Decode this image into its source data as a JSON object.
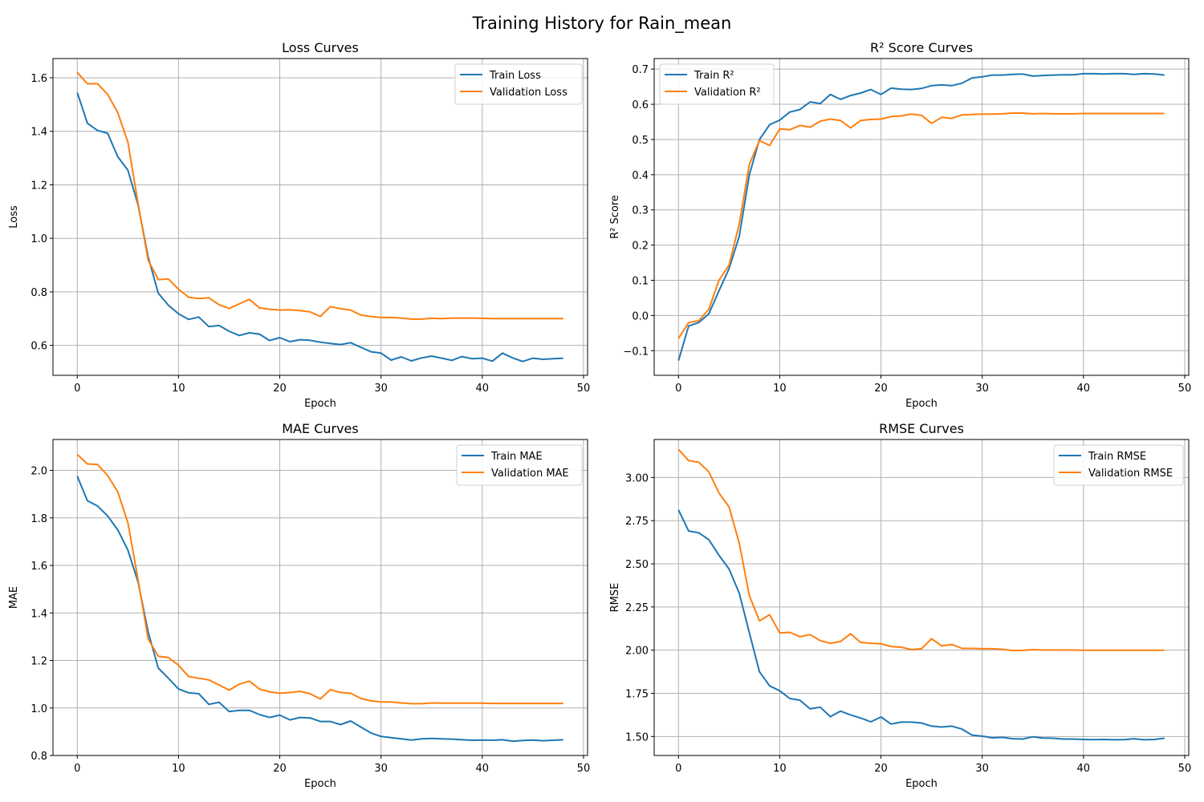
{
  "figure": {
    "suptitle": "Training History for Rain_mean"
  },
  "colors": {
    "train": "#1f77b4",
    "validation": "#ff7f0e",
    "grid": "#b0b0b0",
    "axis": "#000000"
  },
  "chart_data": [
    {
      "type": "line",
      "title": "Loss Curves",
      "xlabel": "Epoch",
      "ylabel": "Loss",
      "xlim": [
        -2.4,
        50.4
      ],
      "ylim": [
        0.488,
        1.672
      ],
      "xticks": [
        0,
        10,
        20,
        30,
        40,
        50
      ],
      "yticks": [
        0.6,
        0.8,
        1.0,
        1.2,
        1.4,
        1.6
      ],
      "ytick_labels": [
        "0.6",
        "0.8",
        "1.0",
        "1.2",
        "1.4",
        "1.6"
      ],
      "grid": true,
      "legend": "upper right",
      "x": [
        0,
        1,
        2,
        3,
        4,
        5,
        6,
        7,
        8,
        9,
        10,
        11,
        12,
        13,
        14,
        15,
        16,
        17,
        18,
        19,
        20,
        21,
        22,
        23,
        24,
        25,
        26,
        27,
        28,
        29,
        30,
        31,
        32,
        33,
        34,
        35,
        36,
        37,
        38,
        39,
        40,
        41,
        42,
        43,
        44,
        45,
        46,
        47,
        48
      ],
      "series": [
        {
          "name": "Train Loss",
          "values": [
            1.545,
            1.43,
            1.403,
            1.393,
            1.305,
            1.255,
            1.125,
            0.93,
            0.795,
            0.75,
            0.718,
            0.697,
            0.706,
            0.67,
            0.674,
            0.653,
            0.637,
            0.647,
            0.642,
            0.618,
            0.629,
            0.614,
            0.621,
            0.619,
            0.612,
            0.607,
            0.603,
            0.61,
            0.593,
            0.576,
            0.571,
            0.545,
            0.557,
            0.542,
            0.553,
            0.56,
            0.552,
            0.544,
            0.558,
            0.55,
            0.552,
            0.541,
            0.571,
            0.553,
            0.54,
            0.552,
            0.548,
            0.55,
            0.552
          ]
        },
        {
          "name": "Validation Loss",
          "values": [
            1.62,
            1.578,
            1.578,
            1.538,
            1.47,
            1.36,
            1.13,
            0.918,
            0.846,
            0.848,
            0.81,
            0.78,
            0.775,
            0.778,
            0.752,
            0.738,
            0.755,
            0.772,
            0.74,
            0.735,
            0.732,
            0.733,
            0.73,
            0.725,
            0.708,
            0.745,
            0.737,
            0.732,
            0.713,
            0.708,
            0.704,
            0.704,
            0.702,
            0.698,
            0.698,
            0.701,
            0.7,
            0.702,
            0.702,
            0.702,
            0.701,
            0.7,
            0.7,
            0.7,
            0.7,
            0.7,
            0.7,
            0.7,
            0.7
          ]
        }
      ]
    },
    {
      "type": "line",
      "title": "R² Score Curves",
      "xlabel": "Epoch",
      "ylabel": "R² Score",
      "xlim": [
        -2.4,
        50.4
      ],
      "ylim": [
        -0.17,
        0.73
      ],
      "xticks": [
        0,
        10,
        20,
        30,
        40,
        50
      ],
      "yticks": [
        -0.1,
        0.0,
        0.1,
        0.2,
        0.3,
        0.4,
        0.5,
        0.6,
        0.7
      ],
      "ytick_labels": [
        "−0.1",
        "0.0",
        "0.1",
        "0.2",
        "0.3",
        "0.4",
        "0.5",
        "0.6",
        "0.7"
      ],
      "grid": true,
      "legend": "upper left",
      "x": [
        0,
        1,
        2,
        3,
        4,
        5,
        6,
        7,
        8,
        9,
        10,
        11,
        12,
        13,
        14,
        15,
        16,
        17,
        18,
        19,
        20,
        21,
        22,
        23,
        24,
        25,
        26,
        27,
        28,
        29,
        30,
        31,
        32,
        33,
        34,
        35,
        36,
        37,
        38,
        39,
        40,
        41,
        42,
        43,
        44,
        45,
        46,
        47,
        48
      ],
      "series": [
        {
          "name": "Train R²",
          "values": [
            -0.128,
            -0.03,
            -0.02,
            0.005,
            0.07,
            0.133,
            0.225,
            0.4,
            0.5,
            0.542,
            0.555,
            0.578,
            0.585,
            0.607,
            0.602,
            0.628,
            0.614,
            0.625,
            0.632,
            0.642,
            0.628,
            0.646,
            0.643,
            0.642,
            0.645,
            0.653,
            0.655,
            0.653,
            0.66,
            0.675,
            0.678,
            0.683,
            0.683,
            0.685,
            0.686,
            0.68,
            0.682,
            0.683,
            0.684,
            0.684,
            0.687,
            0.687,
            0.686,
            0.687,
            0.687,
            0.685,
            0.687,
            0.686,
            0.683
          ]
        },
        {
          "name": "Validation R²",
          "values": [
            -0.065,
            -0.02,
            -0.015,
            0.018,
            0.1,
            0.143,
            0.26,
            0.43,
            0.497,
            0.483,
            0.53,
            0.528,
            0.54,
            0.535,
            0.552,
            0.558,
            0.554,
            0.533,
            0.554,
            0.557,
            0.558,
            0.565,
            0.567,
            0.572,
            0.569,
            0.546,
            0.563,
            0.56,
            0.57,
            0.571,
            0.572,
            0.572,
            0.573,
            0.575,
            0.575,
            0.573,
            0.574,
            0.573,
            0.573,
            0.573,
            0.574,
            0.574,
            0.574,
            0.574,
            0.574,
            0.574,
            0.574,
            0.574,
            0.574
          ]
        }
      ]
    },
    {
      "type": "line",
      "title": "MAE Curves",
      "xlabel": "Epoch",
      "ylabel": "MAE",
      "xlim": [
        -2.4,
        50.4
      ],
      "ylim": [
        0.8,
        2.13
      ],
      "xticks": [
        0,
        10,
        20,
        30,
        40,
        50
      ],
      "yticks": [
        0.8,
        1.0,
        1.2,
        1.4,
        1.6,
        1.8,
        2.0
      ],
      "ytick_labels": [
        "0.8",
        "1.0",
        "1.2",
        "1.4",
        "1.6",
        "1.8",
        "2.0"
      ],
      "grid": true,
      "legend": "upper right",
      "x": [
        0,
        1,
        2,
        3,
        4,
        5,
        6,
        7,
        8,
        9,
        10,
        11,
        12,
        13,
        14,
        15,
        16,
        17,
        18,
        19,
        20,
        21,
        22,
        23,
        24,
        25,
        26,
        27,
        28,
        29,
        30,
        31,
        32,
        33,
        34,
        35,
        36,
        37,
        38,
        39,
        40,
        41,
        42,
        43,
        44,
        45,
        46,
        47,
        48
      ],
      "series": [
        {
          "name": "Train MAE",
          "values": [
            1.975,
            1.872,
            1.85,
            1.808,
            1.75,
            1.665,
            1.53,
            1.32,
            1.168,
            1.125,
            1.08,
            1.064,
            1.06,
            1.015,
            1.024,
            0.985,
            0.99,
            0.99,
            0.972,
            0.96,
            0.97,
            0.95,
            0.96,
            0.958,
            0.943,
            0.943,
            0.93,
            0.945,
            0.92,
            0.895,
            0.88,
            0.875,
            0.87,
            0.865,
            0.87,
            0.872,
            0.87,
            0.869,
            0.866,
            0.864,
            0.865,
            0.864,
            0.866,
            0.86,
            0.863,
            0.865,
            0.862,
            0.864,
            0.866
          ]
        },
        {
          "name": "Validation MAE",
          "values": [
            2.067,
            2.027,
            2.025,
            1.978,
            1.91,
            1.78,
            1.54,
            1.29,
            1.218,
            1.212,
            1.18,
            1.132,
            1.125,
            1.118,
            1.097,
            1.075,
            1.1,
            1.113,
            1.08,
            1.068,
            1.062,
            1.065,
            1.07,
            1.06,
            1.038,
            1.077,
            1.065,
            1.062,
            1.04,
            1.03,
            1.025,
            1.025,
            1.021,
            1.018,
            1.018,
            1.021,
            1.02,
            1.02,
            1.02,
            1.02,
            1.02,
            1.019,
            1.019,
            1.019,
            1.019,
            1.019,
            1.019,
            1.019,
            1.019
          ]
        }
      ]
    },
    {
      "type": "line",
      "title": "RMSE Curves",
      "xlabel": "Epoch",
      "ylabel": "RMSE",
      "xlim": [
        -2.4,
        50.4
      ],
      "ylim": [
        1.39,
        3.22
      ],
      "xticks": [
        0,
        10,
        20,
        30,
        40,
        50
      ],
      "yticks": [
        1.5,
        1.75,
        2.0,
        2.25,
        2.5,
        2.75,
        3.0
      ],
      "ytick_labels": [
        "1.50",
        "1.75",
        "2.00",
        "2.25",
        "2.50",
        "2.75",
        "3.00"
      ],
      "grid": true,
      "legend": "upper right",
      "x": [
        0,
        1,
        2,
        3,
        4,
        5,
        6,
        7,
        8,
        9,
        10,
        11,
        12,
        13,
        14,
        15,
        16,
        17,
        18,
        19,
        20,
        21,
        22,
        23,
        24,
        25,
        26,
        27,
        28,
        29,
        30,
        31,
        32,
        33,
        34,
        35,
        36,
        37,
        38,
        39,
        40,
        41,
        42,
        43,
        44,
        45,
        46,
        47,
        48
      ],
      "series": [
        {
          "name": "Train RMSE",
          "values": [
            2.812,
            2.69,
            2.68,
            2.64,
            2.55,
            2.47,
            2.33,
            2.1,
            1.875,
            1.793,
            1.765,
            1.72,
            1.71,
            1.66,
            1.67,
            1.615,
            1.647,
            1.625,
            1.607,
            1.585,
            1.613,
            1.572,
            1.583,
            1.583,
            1.578,
            1.56,
            1.555,
            1.56,
            1.543,
            1.508,
            1.502,
            1.492,
            1.495,
            1.487,
            1.485,
            1.498,
            1.491,
            1.49,
            1.485,
            1.485,
            1.483,
            1.482,
            1.483,
            1.481,
            1.482,
            1.487,
            1.481,
            1.483,
            1.49
          ]
        },
        {
          "name": "Validation RMSE",
          "values": [
            3.163,
            3.098,
            3.088,
            3.033,
            2.91,
            2.83,
            2.62,
            2.315,
            2.17,
            2.205,
            2.1,
            2.103,
            2.078,
            2.09,
            2.055,
            2.04,
            2.05,
            2.095,
            2.045,
            2.04,
            2.037,
            2.021,
            2.017,
            2.003,
            2.008,
            2.066,
            2.025,
            2.033,
            2.01,
            2.01,
            2.008,
            2.008,
            2.005,
            1.998,
            1.999,
            2.003,
            2.001,
            2.001,
            2.001,
            2.001,
            2.0,
            2.0,
            2.0,
            2.0,
            2.0,
            2.0,
            2.0,
            2.0,
            2.0
          ]
        }
      ]
    }
  ]
}
